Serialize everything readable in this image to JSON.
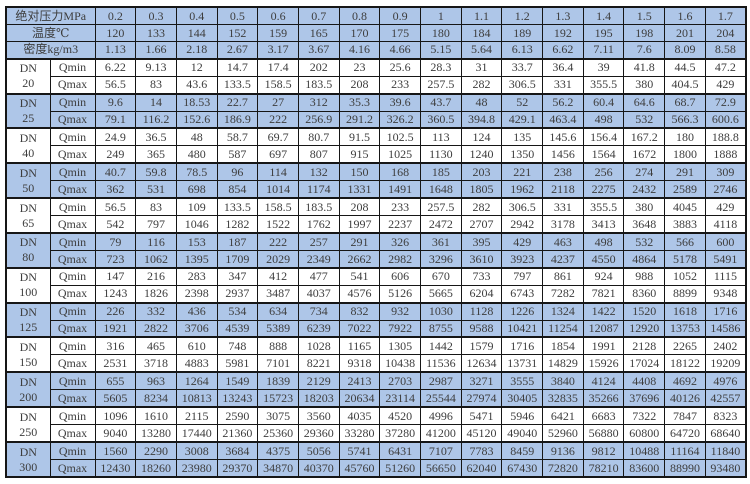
{
  "colors": {
    "row_shade": "#aec6e8",
    "border": "#161616",
    "text": "#3d3d3d",
    "page_bg": "#ffffff"
  },
  "table": {
    "dn_prefix": "DN",
    "qmin_label": "Qmin",
    "qmax_label": "Qmax",
    "header_rows": [
      {
        "name": "pressure-row",
        "label": "绝对压力MPa",
        "values": [
          "0.2",
          "0.3",
          "0.4",
          "0.5",
          "0.6",
          "0.7",
          "0.8",
          "0.9",
          "1",
          "1.1",
          "1.2",
          "1.3",
          "1.4",
          "1.5",
          "1.6",
          "1.7"
        ]
      },
      {
        "name": "temperature-row",
        "label": "温度℃",
        "values": [
          "120",
          "133",
          "144",
          "152",
          "159",
          "165",
          "170",
          "175",
          "180",
          "184",
          "189",
          "192",
          "195",
          "198",
          "201",
          "204"
        ]
      },
      {
        "name": "density-row",
        "label": "密度kg/m3",
        "values": [
          "1.13",
          "1.66",
          "2.18",
          "2.67",
          "3.17",
          "3.67",
          "4.16",
          "4.66",
          "5.15",
          "5.64",
          "6.13",
          "6.62",
          "7.11",
          "7.6",
          "8.09",
          "8.58"
        ]
      }
    ],
    "groups": [
      {
        "dn": "20",
        "qmin": [
          "6.22",
          "9.13",
          "12",
          "14.7",
          "17.4",
          "202",
          "23",
          "25.6",
          "28.3",
          "31",
          "33.7",
          "36.4",
          "39",
          "41.8",
          "44.5",
          "47.2"
        ],
        "qmax": [
          "56.5",
          "83",
          "43.6",
          "133.5",
          "158.5",
          "183.5",
          "208",
          "233",
          "257.5",
          "282",
          "306.5",
          "331",
          "355.5",
          "380",
          "404.5",
          "429"
        ]
      },
      {
        "dn": "25",
        "qmin": [
          "9.6",
          "14",
          "18.53",
          "22.7",
          "27",
          "312",
          "35.3",
          "39.6",
          "43.7",
          "48",
          "52",
          "56.2",
          "60.4",
          "64.6",
          "68.7",
          "72.9"
        ],
        "qmax": [
          "79.1",
          "116.2",
          "152.6",
          "186.9",
          "222",
          "256.9",
          "291.2",
          "326.2",
          "360.5",
          "394.8",
          "429.1",
          "463.4",
          "498",
          "532",
          "566.3",
          "600.6"
        ]
      },
      {
        "dn": "40",
        "qmin": [
          "24.9",
          "36.5",
          "48",
          "58.7",
          "69.7",
          "80.7",
          "91.5",
          "102.5",
          "113",
          "124",
          "135",
          "145.6",
          "156.4",
          "167.2",
          "180",
          "188.8"
        ],
        "qmax": [
          "249",
          "365",
          "480",
          "587",
          "697",
          "807",
          "915",
          "1025",
          "1130",
          "1240",
          "1350",
          "1456",
          "1564",
          "1672",
          "1800",
          "1888"
        ]
      },
      {
        "dn": "50",
        "qmin": [
          "40.7",
          "59.8",
          "78.5",
          "96",
          "114",
          "132",
          "150",
          "168",
          "185",
          "203",
          "221",
          "238",
          "256",
          "274",
          "291",
          "309"
        ],
        "qmax": [
          "362",
          "531",
          "698",
          "854",
          "1014",
          "1174",
          "1331",
          "1491",
          "1648",
          "1805",
          "1962",
          "2118",
          "2275",
          "2432",
          "2589",
          "2746"
        ]
      },
      {
        "dn": "65",
        "qmin": [
          "56.5",
          "83",
          "109",
          "133.5",
          "158.5",
          "183.5",
          "208",
          "233",
          "257.5",
          "282",
          "306.5",
          "331",
          "355.5",
          "380",
          "4045",
          "429"
        ],
        "qmax": [
          "542",
          "797",
          "1046",
          "1282",
          "1522",
          "1762",
          "1997",
          "2237",
          "2472",
          "2707",
          "2942",
          "3178",
          "3413",
          "3648",
          "3883",
          "4118"
        ]
      },
      {
        "dn": "80",
        "qmin": [
          "79",
          "116",
          "153",
          "187",
          "222",
          "257",
          "291",
          "326",
          "361",
          "395",
          "429",
          "463",
          "498",
          "532",
          "566",
          "600"
        ],
        "qmax": [
          "723",
          "1062",
          "1395",
          "1709",
          "2029",
          "2349",
          "2662",
          "2982",
          "3296",
          "3610",
          "3923",
          "4237",
          "4550",
          "4864",
          "5178",
          "5491"
        ]
      },
      {
        "dn": "100",
        "qmin": [
          "147",
          "216",
          "283",
          "347",
          "412",
          "477",
          "541",
          "606",
          "670",
          "733",
          "797",
          "861",
          "924",
          "988",
          "1052",
          "1115"
        ],
        "qmax": [
          "1243",
          "1826",
          "2398",
          "2937",
          "3487",
          "4037",
          "4576",
          "5126",
          "5665",
          "6204",
          "6743",
          "7282",
          "7821",
          "8360",
          "8899",
          "9348"
        ]
      },
      {
        "dn": "125",
        "qmin": [
          "226",
          "332",
          "436",
          "534",
          "634",
          "734",
          "832",
          "932",
          "1030",
          "1128",
          "1226",
          "1324",
          "1422",
          "1520",
          "1618",
          "1716"
        ],
        "qmax": [
          "1921",
          "2822",
          "3706",
          "4539",
          "5389",
          "6239",
          "7022",
          "7922",
          "8755",
          "9588",
          "10421",
          "11254",
          "12087",
          "12920",
          "13753",
          "14586"
        ]
      },
      {
        "dn": "150",
        "qmin": [
          "316",
          "465",
          "610",
          "748",
          "888",
          "1028",
          "1165",
          "1305",
          "1442",
          "1579",
          "1716",
          "1854",
          "1991",
          "2128",
          "2265",
          "2402"
        ],
        "qmax": [
          "2531",
          "3718",
          "4883",
          "5981",
          "7101",
          "8221",
          "9318",
          "10438",
          "11536",
          "12634",
          "13731",
          "14829",
          "15926",
          "17024",
          "18122",
          "19209"
        ]
      },
      {
        "dn": "200",
        "qmin": [
          "655",
          "963",
          "1264",
          "1549",
          "1839",
          "2129",
          "2413",
          "2703",
          "2987",
          "3271",
          "3555",
          "3840",
          "4124",
          "4408",
          "4692",
          "4976"
        ],
        "qmax": [
          "5605",
          "8234",
          "10813",
          "13243",
          "15723",
          "18203",
          "20634",
          "23114",
          "25544",
          "27974",
          "30405",
          "32835",
          "35266",
          "37696",
          "40126",
          "42557"
        ]
      },
      {
        "dn": "250",
        "qmin": [
          "1096",
          "1610",
          "2115",
          "2590",
          "3075",
          "3560",
          "4035",
          "4520",
          "4996",
          "5471",
          "5946",
          "6421",
          "6683",
          "7322",
          "7847",
          "8323"
        ],
        "qmax": [
          "9040",
          "13280",
          "17440",
          "21360",
          "25360",
          "29360",
          "33280",
          "37280",
          "41200",
          "45120",
          "49040",
          "52960",
          "56880",
          "60800",
          "64720",
          "68640"
        ]
      },
      {
        "dn": "300",
        "qmin": [
          "1560",
          "2290",
          "3008",
          "3684",
          "4375",
          "5056",
          "5741",
          "6431",
          "7107",
          "7783",
          "8459",
          "9136",
          "9812",
          "10488",
          "11164",
          "11840"
        ],
        "qmax": [
          "12430",
          "18260",
          "23980",
          "29370",
          "34870",
          "40370",
          "45760",
          "51260",
          "56650",
          "62040",
          "67430",
          "72820",
          "78210",
          "83600",
          "88990",
          "93480"
        ]
      }
    ]
  }
}
